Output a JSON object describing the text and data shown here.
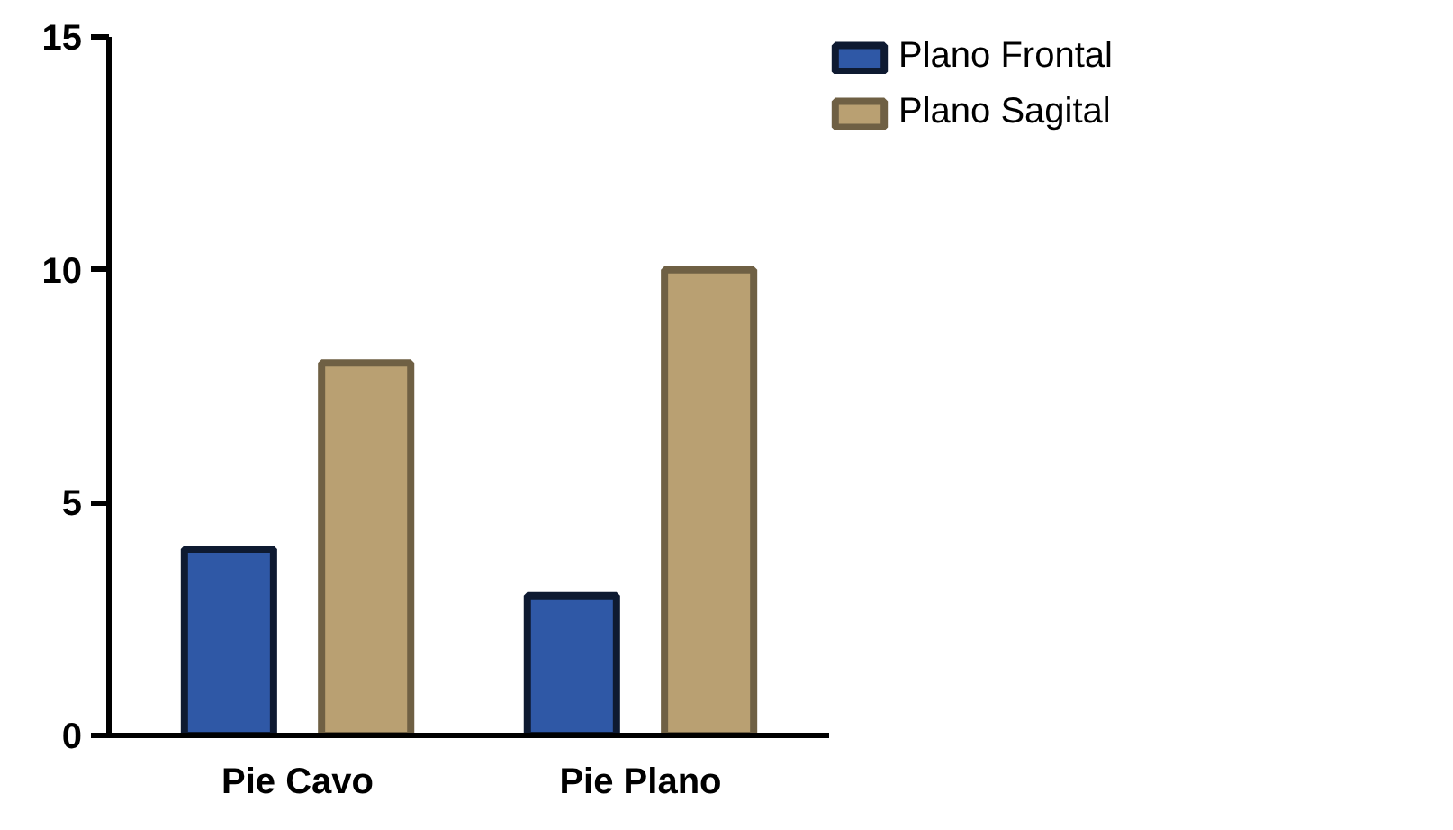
{
  "chart_data": {
    "type": "bar",
    "categories": [
      "Pie Cavo",
      "Pie Plano"
    ],
    "series": [
      {
        "name": "Plano Frontal",
        "color": "#2f58a6",
        "values": [
          4,
          3
        ]
      },
      {
        "name": "Plano Sagital",
        "color": "#b9a072",
        "values": [
          8,
          10
        ]
      }
    ],
    "ylim": [
      0,
      15
    ],
    "yticks": [
      0,
      5,
      10,
      15
    ],
    "grid": false,
    "legend": "top right"
  }
}
